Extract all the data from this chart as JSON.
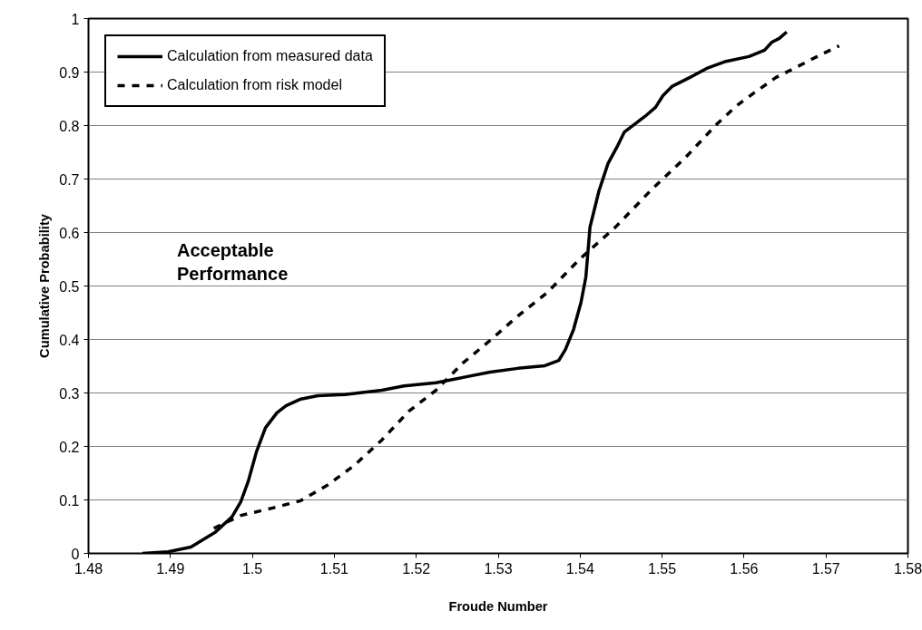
{
  "chart_data": {
    "type": "line",
    "xlabel": "Froude Number",
    "ylabel": "Cumulative Probability",
    "xlim": [
      1.48,
      1.58
    ],
    "ylim": [
      0,
      1
    ],
    "xticks": [
      1.48,
      1.49,
      1.5,
      1.51,
      1.52,
      1.53,
      1.54,
      1.55,
      1.56,
      1.57,
      1.58
    ],
    "yticks": [
      0,
      0.1,
      0.2,
      0.3,
      0.4,
      0.5,
      0.6,
      0.7,
      0.8,
      0.9,
      1
    ],
    "grid": "y",
    "legend": "top left",
    "annotations": [
      "Acceptable Performance"
    ],
    "series": [
      {
        "name": "Calculation from measured data",
        "color": "#000000",
        "line_style": "solid",
        "x": [
          1.4866,
          1.4897,
          1.4925,
          1.4955,
          1.4975,
          1.4986,
          1.4995,
          1.5005,
          1.5016,
          1.503,
          1.5041,
          1.5058,
          1.508,
          1.5113,
          1.5158,
          1.5185,
          1.5224,
          1.5257,
          1.529,
          1.5324,
          1.5357,
          1.5374,
          1.5382,
          1.5392,
          1.5401,
          1.5407,
          1.5412,
          1.5423,
          1.5434,
          1.5446,
          1.5454,
          1.5479,
          1.5492,
          1.5501,
          1.5512,
          1.5534,
          1.5556,
          1.5578,
          1.5606,
          1.5625,
          1.5634,
          1.5643,
          1.5652
        ],
        "values": [
          0,
          0.003,
          0.012,
          0.04,
          0.068,
          0.097,
          0.135,
          0.19,
          0.235,
          0.263,
          0.276,
          0.288,
          0.295,
          0.297,
          0.305,
          0.313,
          0.319,
          0.329,
          0.339,
          0.346,
          0.351,
          0.361,
          0.381,
          0.419,
          0.469,
          0.517,
          0.61,
          0.678,
          0.729,
          0.763,
          0.788,
          0.817,
          0.834,
          0.856,
          0.873,
          0.89,
          0.908,
          0.92,
          0.929,
          0.941,
          0.956,
          0.963,
          0.975
        ]
      },
      {
        "name": "Calculation from risk model",
        "color": "#000000",
        "line_style": "dashed",
        "x": [
          1.4953,
          1.4975,
          1.4986,
          1.5025,
          1.5058,
          1.5091,
          1.5124,
          1.5158,
          1.5191,
          1.5224,
          1.5257,
          1.529,
          1.5324,
          1.536,
          1.54,
          1.5443,
          1.5487,
          1.5529,
          1.5567,
          1.5591,
          1.5614,
          1.5639,
          1.5665,
          1.5693,
          1.5716
        ],
        "values": [
          0.047,
          0.063,
          0.071,
          0.085,
          0.098,
          0.127,
          0.164,
          0.212,
          0.266,
          0.305,
          0.356,
          0.398,
          0.444,
          0.488,
          0.551,
          0.61,
          0.68,
          0.741,
          0.803,
          0.837,
          0.863,
          0.89,
          0.91,
          0.932,
          0.949
        ]
      }
    ]
  }
}
